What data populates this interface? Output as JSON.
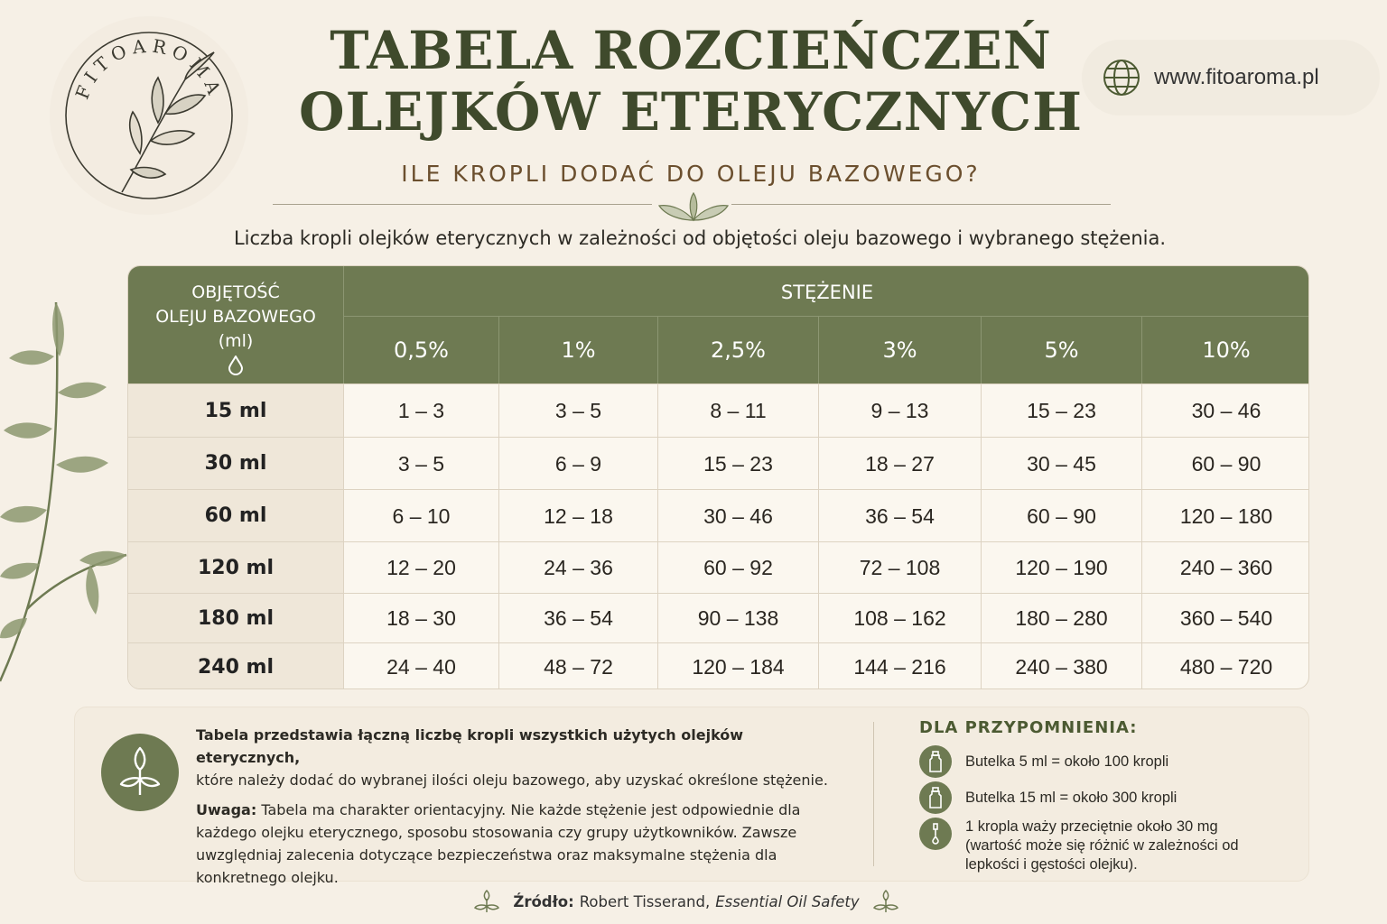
{
  "brand": {
    "name": "FITOAROMA"
  },
  "header": {
    "title_line1": "TABELA ROZCIEŃCZEŃ",
    "title_line2": "OLEJKÓW ETERYCZNYCH",
    "subtitle": "ILE KROPLI DODAĆ DO OLEJU BAZOWEGO?",
    "website": "www.fitoaroma.pl"
  },
  "intro": "Liczba kropli olejków eterycznych w zależności od objętości oleju bazowego i wybranego stężenia.",
  "table": {
    "row_header": [
      "OBJĘTOŚĆ",
      "OLEJU BAZOWEGO",
      "(ml)"
    ],
    "concentration_header": "STĘŻENIE",
    "columns": [
      "0,5%",
      "1%",
      "2,5%",
      "3%",
      "5%",
      "10%"
    ],
    "rows": [
      {
        "label": "15 ml",
        "values": [
          "1 – 3",
          "3 – 5",
          "8 – 11",
          "9 – 13",
          "15 – 23",
          "30 – 46"
        ]
      },
      {
        "label": "30 ml",
        "values": [
          "3 – 5",
          "6 – 9",
          "15 – 23",
          "18 – 27",
          "30 – 45",
          "60 – 90"
        ]
      },
      {
        "label": "60 ml",
        "values": [
          "6 – 10",
          "12 – 18",
          "30 – 46",
          "36 – 54",
          "60 – 90",
          "120 – 180"
        ]
      },
      {
        "label": "120 ml",
        "values": [
          "12 – 20",
          "24 – 36",
          "60 – 92",
          "72 – 108",
          "120 – 190",
          "240 – 360"
        ]
      },
      {
        "label": "180 ml",
        "values": [
          "18 – 30",
          "36 – 54",
          "90 – 138",
          "108 – 162",
          "180 – 280",
          "360 – 540"
        ]
      },
      {
        "label": "240 ml",
        "values": [
          "24 – 40",
          "48 – 72",
          "120 – 184",
          "144 – 216",
          "240 – 380",
          "480 – 720"
        ]
      }
    ]
  },
  "note": {
    "bold_line": "Tabela przedstawia łączną liczbę kropli wszystkich użytych olejków eterycznych,",
    "line2": "które należy dodać do wybranej ilości oleju bazowego, aby uzyskać określone stężenie.",
    "warning_label": "Uwaga:",
    "warning_text": "Tabela ma charakter orientacyjny. Nie każde stężenie jest odpowiednie dla każdego olejku eterycznego, sposobu stosowania czy grupy użytkowników. Zawsze uwzględniaj zalecenia dotyczące bezpieczeństwa oraz maksymalne stężenia dla konkretnego olejku."
  },
  "reminder": {
    "title": "DLA PRZYPOMNIENIA:",
    "items": [
      {
        "icon": "bottle-icon",
        "text": "Butelka 5 ml = około 100 kropli"
      },
      {
        "icon": "bottle-icon",
        "text": "Butelka 15 ml = około 300 kropli"
      },
      {
        "icon": "dropper-icon",
        "text": "1 kropla waży przeciętnie około 30 mg (wartość może się różnić w zależności od lepkości i gęstości olejku)."
      }
    ]
  },
  "source": {
    "label": "Źródło:",
    "author": "Robert Tisserand,",
    "work": "Essential Oil Safety"
  },
  "colors": {
    "accent": "#6e7a52",
    "title": "#3f4a2c",
    "background": "#f6f0e6"
  }
}
